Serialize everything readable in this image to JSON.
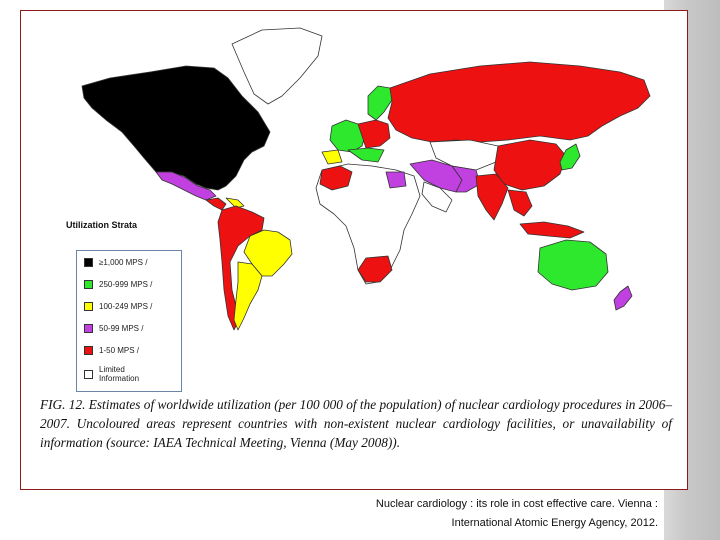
{
  "legend": {
    "title": "Utilization Strata",
    "items": [
      {
        "label": "≥1,000  MPS  /",
        "color": "#000000"
      },
      {
        "label": "250-999  MPS  /",
        "color": "#2ee82e"
      },
      {
        "label": "100-249  MPS  /",
        "color": "#ffff00"
      },
      {
        "label": "50-99  MPS  /",
        "color": "#c040e0"
      },
      {
        "label": "1-50  MPS  /",
        "color": "#ee1111"
      },
      {
        "label": "Limited Information",
        "color": "#ffffff"
      }
    ]
  },
  "caption": "FIG. 12. Estimates of worldwide utilization (per 100 000 of the population) of nuclear cardiology procedures in 2006–2007. Uncoloured areas represent countries with non-existent nuclear cardiology facilities, or unavailability of information (source: IAEA Technical Meeting, Vienna (May 2008)).",
  "source_line_1": "Nuclear cardiology : its role in cost effective care. Vienna :",
  "source_line_2": "International Atomic Energy Agency, 2012.",
  "colors": {
    "black": "#000000",
    "green": "#2ee82e",
    "yellow": "#ffff00",
    "purple": "#c040e0",
    "red": "#ee1111",
    "white": "#ffffff"
  }
}
